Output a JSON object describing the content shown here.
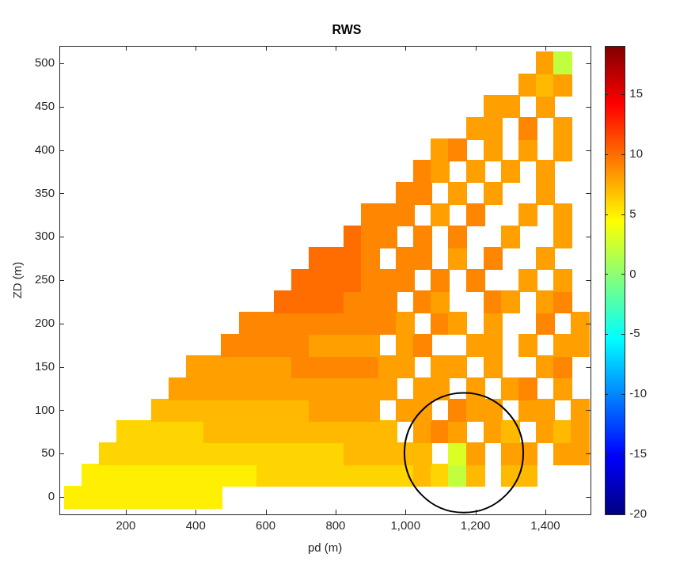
{
  "chart_data": {
    "type": "heatmap",
    "title": "RWS",
    "x_label": "pd (m)",
    "y_label": "ZD (m)",
    "x": [
      50,
      100,
      150,
      200,
      250,
      300,
      350,
      400,
      450,
      500,
      550,
      600,
      650,
      700,
      750,
      800,
      850,
      900,
      950,
      1000,
      1050,
      1100,
      1150,
      1200,
      1250,
      1300,
      1350,
      1400,
      1450,
      1500
    ],
    "y": [
      0,
      25,
      50,
      75,
      100,
      125,
      150,
      175,
      200,
      225,
      250,
      275,
      300,
      325,
      350,
      375,
      400,
      425,
      450,
      475,
      500
    ],
    "cells": [
      [
        5,
        5,
        5,
        5,
        5,
        5,
        5,
        5,
        5,
        null,
        null,
        null,
        null,
        null,
        null,
        null,
        null,
        null,
        null,
        null,
        null,
        null,
        null,
        null,
        null,
        null,
        null,
        null,
        null,
        null
      ],
      [
        null,
        5,
        5,
        5,
        5,
        5,
        5,
        5,
        5,
        5,
        5,
        6,
        6,
        6,
        6,
        6,
        6,
        6,
        6,
        6,
        7,
        6,
        2,
        7,
        null,
        7,
        7,
        null,
        null,
        null
      ],
      [
        null,
        null,
        6,
        6,
        6,
        6,
        6,
        6,
        6,
        6,
        6,
        6,
        6,
        6,
        6,
        6,
        7,
        7,
        7,
        7,
        7,
        null,
        3,
        8,
        null,
        8,
        8,
        null,
        8,
        8
      ],
      [
        null,
        null,
        null,
        6,
        6,
        6,
        6,
        6,
        7,
        7,
        7,
        7,
        7,
        7,
        7,
        7,
        7,
        7,
        7,
        null,
        8,
        9,
        8,
        null,
        8,
        7,
        null,
        8,
        7,
        8
      ],
      [
        null,
        null,
        null,
        null,
        null,
        7,
        7,
        7,
        7,
        7,
        7,
        7,
        7,
        7,
        8,
        8,
        8,
        8,
        null,
        8,
        8,
        null,
        9,
        8,
        8,
        null,
        8,
        8,
        null,
        8
      ],
      [
        null,
        null,
        null,
        null,
        null,
        null,
        8,
        8,
        8,
        8,
        8,
        8,
        8,
        8,
        8,
        8,
        8,
        8,
        8,
        null,
        8,
        8,
        null,
        8,
        null,
        8,
        9,
        null,
        8,
        null
      ],
      [
        null,
        null,
        null,
        null,
        null,
        null,
        null,
        8,
        8,
        8,
        8,
        8,
        8,
        9,
        9,
        9,
        9,
        9,
        8,
        8,
        null,
        8,
        8,
        null,
        8,
        null,
        null,
        8,
        9,
        null
      ],
      [
        null,
        null,
        null,
        null,
        null,
        null,
        null,
        null,
        null,
        9,
        9,
        9,
        9,
        9,
        8,
        8,
        8,
        8,
        null,
        8,
        9,
        null,
        null,
        8,
        8,
        null,
        8,
        null,
        8,
        8
      ],
      [
        null,
        null,
        null,
        null,
        null,
        null,
        null,
        null,
        null,
        null,
        9,
        9,
        9,
        9,
        9,
        9,
        9,
        9,
        9,
        8,
        null,
        9,
        8,
        null,
        8,
        null,
        null,
        9,
        null,
        8
      ],
      [
        null,
        null,
        null,
        null,
        null,
        null,
        null,
        null,
        null,
        null,
        null,
        null,
        10,
        10,
        10,
        10,
        9,
        9,
        9,
        null,
        9,
        8,
        null,
        null,
        9,
        8,
        null,
        8,
        9,
        null
      ],
      [
        null,
        null,
        null,
        null,
        null,
        null,
        null,
        null,
        null,
        null,
        null,
        null,
        null,
        10,
        10,
        10,
        10,
        9,
        9,
        9,
        null,
        9,
        null,
        9,
        null,
        null,
        8,
        null,
        8,
        null
      ],
      [
        null,
        null,
        null,
        null,
        null,
        null,
        null,
        null,
        null,
        null,
        null,
        null,
        null,
        null,
        10,
        10,
        10,
        9,
        null,
        9,
        9,
        null,
        8,
        null,
        9,
        null,
        null,
        8,
        null,
        null
      ],
      [
        null,
        null,
        null,
        null,
        null,
        null,
        null,
        null,
        null,
        null,
        null,
        null,
        null,
        null,
        null,
        null,
        10,
        9,
        9,
        null,
        9,
        null,
        9,
        null,
        null,
        8,
        null,
        null,
        8,
        null
      ],
      [
        null,
        null,
        null,
        null,
        null,
        null,
        null,
        null,
        null,
        null,
        null,
        null,
        null,
        null,
        null,
        null,
        null,
        9,
        9,
        9,
        null,
        8,
        null,
        9,
        null,
        null,
        8,
        null,
        8,
        null
      ],
      [
        null,
        null,
        null,
        null,
        null,
        null,
        null,
        null,
        null,
        null,
        null,
        null,
        null,
        null,
        null,
        null,
        null,
        null,
        null,
        9,
        9,
        null,
        8,
        null,
        8,
        null,
        null,
        8,
        null,
        null
      ],
      [
        null,
        null,
        null,
        null,
        null,
        null,
        null,
        null,
        null,
        null,
        null,
        null,
        null,
        null,
        null,
        null,
        null,
        null,
        null,
        null,
        9,
        8,
        null,
        8,
        null,
        8,
        null,
        8,
        null,
        null
      ],
      [
        null,
        null,
        null,
        null,
        null,
        null,
        null,
        null,
        null,
        null,
        null,
        null,
        null,
        null,
        null,
        null,
        null,
        null,
        null,
        null,
        null,
        8,
        9,
        null,
        8,
        null,
        8,
        null,
        8,
        null
      ],
      [
        null,
        null,
        null,
        null,
        null,
        null,
        null,
        null,
        null,
        null,
        null,
        null,
        null,
        null,
        null,
        null,
        null,
        null,
        null,
        null,
        null,
        null,
        null,
        8,
        8,
        null,
        9,
        null,
        8,
        null
      ],
      [
        null,
        null,
        null,
        null,
        null,
        null,
        null,
        null,
        null,
        null,
        null,
        null,
        null,
        null,
        null,
        null,
        null,
        null,
        null,
        null,
        null,
        null,
        null,
        null,
        8,
        8,
        null,
        8,
        null,
        null
      ],
      [
        null,
        null,
        null,
        null,
        null,
        null,
        null,
        null,
        null,
        null,
        null,
        null,
        null,
        null,
        null,
        null,
        null,
        null,
        null,
        null,
        null,
        null,
        null,
        null,
        null,
        null,
        8,
        7,
        8,
        null
      ],
      [
        null,
        null,
        null,
        null,
        null,
        null,
        null,
        null,
        null,
        null,
        null,
        null,
        null,
        null,
        null,
        null,
        null,
        null,
        null,
        null,
        null,
        null,
        null,
        null,
        null,
        null,
        null,
        8,
        2,
        null
      ]
    ],
    "xlim": [
      10,
      1530
    ],
    "ylim": [
      -20,
      520
    ],
    "xticks": [
      200,
      400,
      600,
      800,
      1000,
      1200,
      1400
    ],
    "yticks": [
      0,
      50,
      100,
      150,
      200,
      250,
      300,
      350,
      400,
      450,
      500
    ],
    "colorbar": {
      "range": [
        -20,
        19
      ],
      "ticks": [
        -20,
        -15,
        -10,
        -5,
        0,
        5,
        10,
        15
      ]
    },
    "grid": false,
    "annotations": [
      {
        "shape": "ellipse",
        "x": 1167,
        "y": 51,
        "rx": 170,
        "ry": 69,
        "color": "#000000"
      }
    ]
  }
}
